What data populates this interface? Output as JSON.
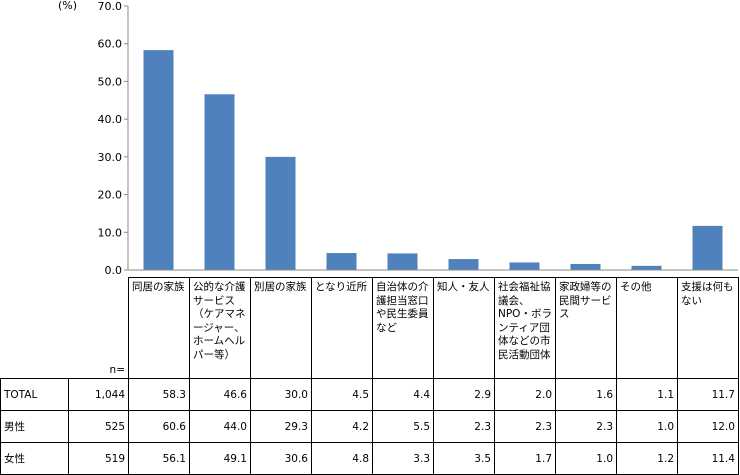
{
  "chart_data": {
    "type": "bar",
    "unit_label": "(%)",
    "ylim": [
      0,
      70
    ],
    "yticks": [
      "0.0",
      "10.0",
      "20.0",
      "30.0",
      "40.0",
      "50.0",
      "60.0",
      "70.0"
    ],
    "bar_color": "#4F81BD",
    "categories": [
      "同居の家族",
      "公的な介護サービス（ケアマネージャー、ホームヘルパー等）",
      "別居の家族",
      "となり近所",
      "自治体の介護担当窓口や民生委員など",
      "知人・友人",
      "社会福祉協議会、NPO・ボランティア団体などの市民活動団体",
      "家政婦等の民間サービス",
      "その他",
      "支援は何もない"
    ],
    "values": [
      58.3,
      46.6,
      30.0,
      4.5,
      4.4,
      2.9,
      2.0,
      1.6,
      1.1,
      11.7
    ]
  },
  "table": {
    "n_label": "n=",
    "rows": [
      {
        "label": "TOTAL",
        "n": "1,044",
        "cells": [
          "58.3",
          "46.6",
          "30.0",
          "4.5",
          "4.4",
          "2.9",
          "2.0",
          "1.6",
          "1.1",
          "11.7"
        ]
      },
      {
        "label": "男性",
        "n": "525",
        "cells": [
          "60.6",
          "44.0",
          "29.3",
          "4.2",
          "5.5",
          "2.3",
          "2.3",
          "2.3",
          "1.0",
          "12.0"
        ]
      },
      {
        "label": "女性",
        "n": "519",
        "cells": [
          "56.1",
          "49.1",
          "30.6",
          "4.8",
          "3.3",
          "3.5",
          "1.7",
          "1.0",
          "1.2",
          "11.4"
        ]
      }
    ]
  }
}
